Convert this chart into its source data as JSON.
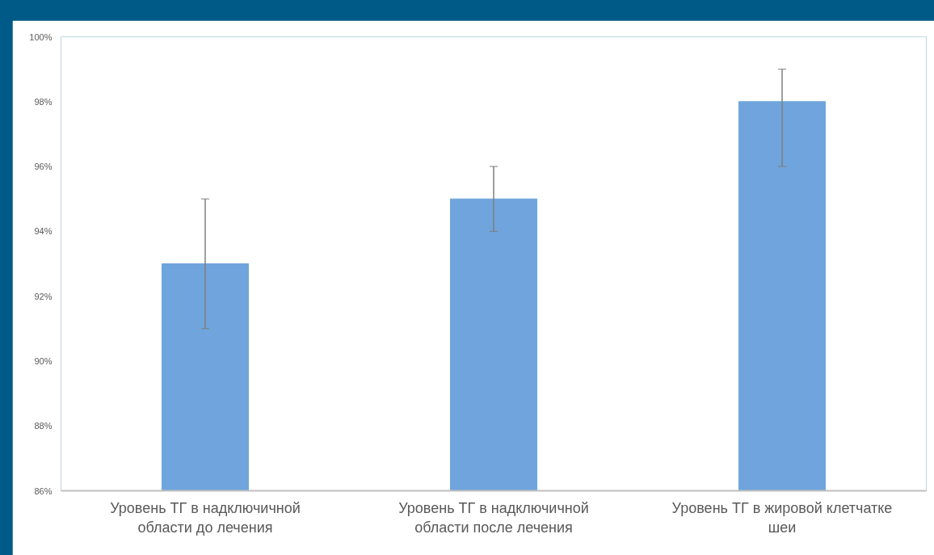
{
  "chart_data": {
    "type": "bar",
    "categories": [
      "Уровень ТГ в надключичной области до лечения",
      "Уровень ТГ в надключичной области после лечения",
      "Уровень ТГ в жировой клетчатке шеи"
    ],
    "values": [
      93,
      95,
      98
    ],
    "errors": [
      [
        91,
        95
      ],
      [
        94,
        96
      ],
      [
        96,
        99
      ]
    ],
    "color": "#6fa5dc",
    "ylim": [
      86,
      100
    ],
    "yticks": [
      {
        "value": 86,
        "label": "86%"
      },
      {
        "value": 88,
        "label": "88%"
      },
      {
        "value": 90,
        "label": "90%"
      },
      {
        "value": 92,
        "label": "92%"
      },
      {
        "value": 94,
        "label": "94%"
      },
      {
        "value": 96,
        "label": "96%"
      },
      {
        "value": 98,
        "label": "98%"
      },
      {
        "value": 100,
        "label": "100%"
      }
    ],
    "grid": false
  }
}
